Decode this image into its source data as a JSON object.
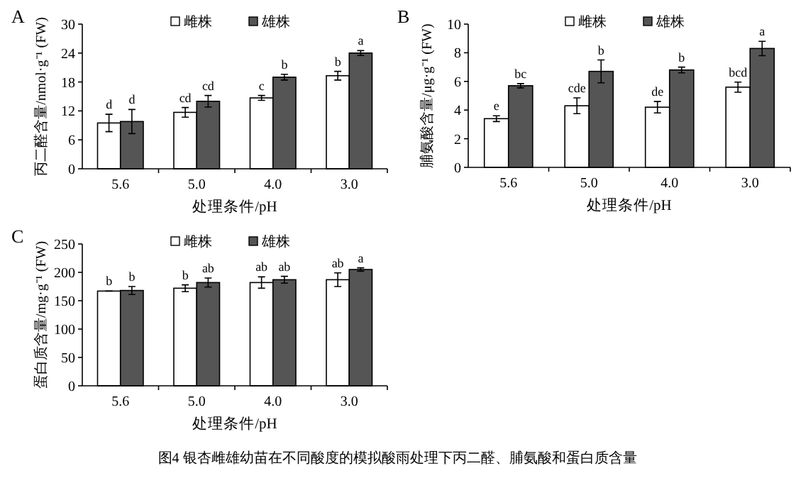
{
  "chart_data": [
    {
      "type": "bar",
      "title": "A",
      "xlabel": "处理条件/pH",
      "ylabel": "丙二醛含量/nmol·g⁻¹ (FW)",
      "categories": [
        "5.6",
        "5.0",
        "4.0",
        "3.0"
      ],
      "ylim": [
        0,
        30
      ],
      "yticks": [
        0,
        6,
        12,
        18,
        24,
        30
      ],
      "grid": false,
      "legend": "top",
      "series": [
        {
          "name": "雌株",
          "color": "#ffffff",
          "values": [
            9.5,
            11.7,
            14.7,
            19.3
          ],
          "errors": [
            1.8,
            1.0,
            0.5,
            0.9
          ],
          "value_labels": [
            "d",
            "cd",
            "c",
            "b"
          ]
        },
        {
          "name": "雄株",
          "color": "#555555",
          "values": [
            9.8,
            14.0,
            19.0,
            24.0
          ],
          "errors": [
            2.5,
            1.2,
            0.6,
            0.5
          ],
          "value_labels": [
            "d",
            "cd",
            "b",
            "a"
          ]
        }
      ]
    },
    {
      "type": "bar",
      "title": "B",
      "xlabel": "处理条件/pH",
      "ylabel": "脯氨酸含量/μg·g⁻¹ (FW)",
      "categories": [
        "5.6",
        "5.0",
        "4.0",
        "3.0"
      ],
      "ylim": [
        0,
        10
      ],
      "yticks": [
        0,
        2,
        4,
        6,
        8,
        10
      ],
      "grid": false,
      "legend": "top",
      "series": [
        {
          "name": "雌株",
          "color": "#ffffff",
          "values": [
            3.4,
            4.3,
            4.2,
            5.6
          ],
          "errors": [
            0.2,
            0.55,
            0.4,
            0.35
          ],
          "value_labels": [
            "e",
            "cde",
            "de",
            "bcd"
          ]
        },
        {
          "name": "雄株",
          "color": "#555555",
          "values": [
            5.7,
            6.7,
            6.8,
            8.3
          ],
          "errors": [
            0.15,
            0.8,
            0.2,
            0.5
          ],
          "value_labels": [
            "bc",
            "b",
            "b",
            "a"
          ]
        }
      ]
    },
    {
      "type": "bar",
      "title": "C",
      "xlabel": "处理条件/pH",
      "ylabel": "蛋白质含量/mg·g⁻¹ (FW)",
      "categories": [
        "5.6",
        "5.0",
        "4.0",
        "3.0"
      ],
      "ylim": [
        0,
        250
      ],
      "yticks": [
        0,
        50,
        100,
        150,
        200,
        250
      ],
      "grid": false,
      "legend": "top",
      "series": [
        {
          "name": "雌株",
          "color": "#ffffff",
          "values": [
            167,
            172,
            182,
            187
          ],
          "errors": [
            0,
            6,
            10,
            12
          ],
          "value_labels": [
            "b",
            "b",
            "ab",
            "ab"
          ]
        },
        {
          "name": "雄株",
          "color": "#555555",
          "values": [
            168,
            182,
            187,
            205
          ],
          "errors": [
            7,
            8,
            6,
            3
          ],
          "value_labels": [
            "b",
            "ab",
            "ab",
            "a"
          ]
        }
      ],
      "annotations": [
        "图4 银杏雌雄幼苗在不同酸度的模拟酸雨处理下丙二醛、脯氨酸和蛋白质含量"
      ]
    }
  ]
}
